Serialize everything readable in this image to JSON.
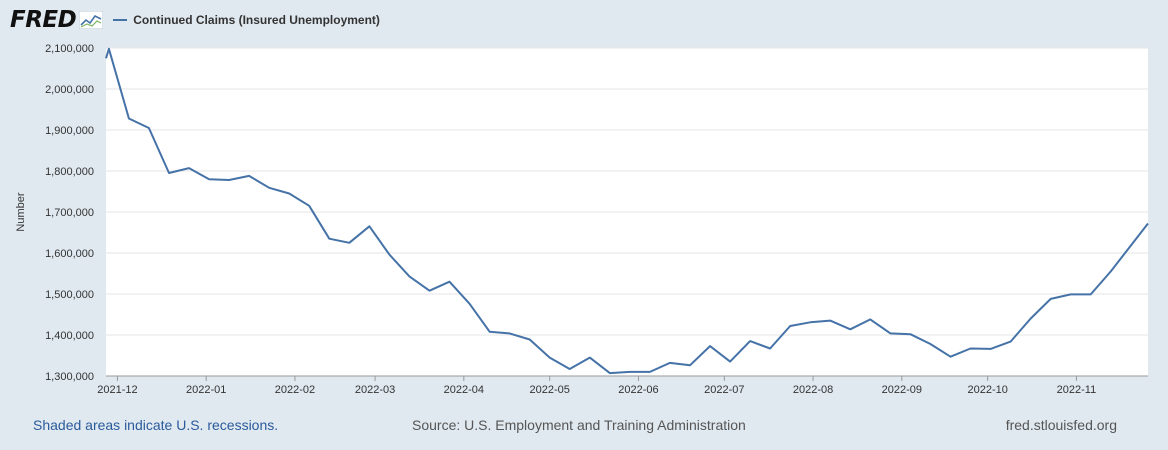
{
  "header": {
    "logo_text": "FRED",
    "logo_icon": "line-graph-icon",
    "legend_label": "Continued Claims (Insured Unemployment)",
    "series_color": "#4572a7"
  },
  "footer": {
    "recession_note": "Shaded areas indicate U.S. recessions.",
    "source": "Source: U.S. Employment and Training Administration",
    "site": "fred.stlouisfed.org"
  },
  "chart_data": {
    "type": "line",
    "title": "",
    "xlabel": "",
    "ylabel": "Number",
    "ylim": [
      1300000,
      2100000
    ],
    "yticks": [
      1300000,
      1400000,
      1500000,
      1600000,
      1700000,
      1800000,
      1900000,
      2000000,
      2100000
    ],
    "ytick_labels": [
      "1,300,000",
      "1,400,000",
      "1,500,000",
      "1,600,000",
      "1,700,000",
      "1,800,000",
      "1,900,000",
      "2,000,000",
      "2,100,000"
    ],
    "xlim": [
      "2021-11-27",
      "2022-11-26"
    ],
    "xticks": [
      "2021-12-01",
      "2022-01-01",
      "2022-02-01",
      "2022-03-01",
      "2022-04-01",
      "2022-05-01",
      "2022-06-01",
      "2022-07-01",
      "2022-08-01",
      "2022-09-01",
      "2022-10-01",
      "2022-11-01"
    ],
    "xtick_labels": [
      "2021-12",
      "2022-01",
      "2022-02",
      "2022-03",
      "2022-04",
      "2022-05",
      "2022-06",
      "2022-07",
      "2022-08",
      "2022-09",
      "2022-10",
      "2022-11"
    ],
    "grid": true,
    "series": [
      {
        "name": "Continued Claims (Insured Unemployment)",
        "color": "#4572a7",
        "x": [
          "2021-11-27",
          "2021-11-28",
          "2021-12-05",
          "2021-12-12",
          "2021-12-19",
          "2021-12-26",
          "2022-01-02",
          "2022-01-09",
          "2022-01-16",
          "2022-01-23",
          "2022-01-30",
          "2022-02-06",
          "2022-02-13",
          "2022-02-20",
          "2022-02-27",
          "2022-03-06",
          "2022-03-13",
          "2022-03-20",
          "2022-03-27",
          "2022-04-03",
          "2022-04-10",
          "2022-04-17",
          "2022-04-24",
          "2022-05-01",
          "2022-05-08",
          "2022-05-15",
          "2022-05-22",
          "2022-05-29",
          "2022-06-05",
          "2022-06-12",
          "2022-06-19",
          "2022-06-26",
          "2022-07-03",
          "2022-07-10",
          "2022-07-17",
          "2022-07-24",
          "2022-07-31",
          "2022-08-07",
          "2022-08-14",
          "2022-08-21",
          "2022-08-28",
          "2022-09-04",
          "2022-09-11",
          "2022-09-18",
          "2022-09-25",
          "2022-10-02",
          "2022-10-09",
          "2022-10-16",
          "2022-10-23",
          "2022-10-30",
          "2022-11-06",
          "2022-11-13",
          "2022-11-20",
          "2022-11-26"
        ],
        "y": [
          2075000,
          2098000,
          1928000,
          1905000,
          1795000,
          1807000,
          1780000,
          1778000,
          1788000,
          1759000,
          1745000,
          1715000,
          1635000,
          1625000,
          1665000,
          1596000,
          1543000,
          1508000,
          1530000,
          1476000,
          1408000,
          1404000,
          1389000,
          1345000,
          1317000,
          1345000,
          1307000,
          1310000,
          1310000,
          1332000,
          1326000,
          1373000,
          1335000,
          1385000,
          1367000,
          1422000,
          1431000,
          1435000,
          1414000,
          1438000,
          1404000,
          1402000,
          1378000,
          1347000,
          1367000,
          1366000,
          1384000,
          1440000,
          1488000,
          1499000,
          1499000,
          1555000,
          1618000,
          1672000
        ]
      }
    ]
  }
}
